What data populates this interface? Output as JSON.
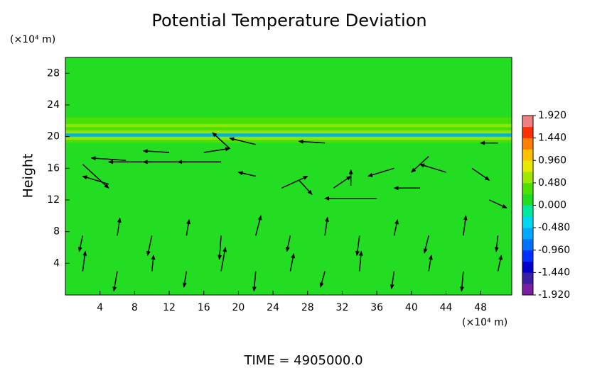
{
  "chart_data": {
    "type": "vector-field",
    "title": "Potential Temperature Deviation",
    "ylabel": "Height",
    "yunit": "(×10⁴ m)",
    "xunit": "(×10⁴ m)",
    "footer": "TIME = 4905000.0",
    "xlim": [
      0,
      51.6
    ],
    "ylim": [
      0,
      30
    ],
    "xticks": [
      4,
      8,
      12,
      16,
      20,
      24,
      28,
      32,
      36,
      40,
      44,
      48
    ],
    "yticks": [
      4,
      8,
      12,
      16,
      20,
      24,
      28
    ],
    "background": 0.1,
    "field": {
      "y": [
        19.4,
        19.8,
        20.2,
        20.6,
        21.0,
        21.4,
        21.8,
        22.2
      ],
      "values": [
        0.3,
        0.6,
        -0.5,
        0.6,
        0.3,
        0.5,
        0.3,
        0.25
      ]
    },
    "colorbar": {
      "lim": [
        -1.92,
        1.92
      ],
      "colors": [
        "#7a1fa0",
        "#3a1fa0",
        "#0000c8",
        "#0030ff",
        "#0070ff",
        "#00a8ff",
        "#00d8f0",
        "#00e8a0",
        "#22dd22",
        "#50e000",
        "#a0e800",
        "#e8e800",
        "#ffc000",
        "#ff8000",
        "#ff3000",
        "#f08080"
      ],
      "ticks": [
        {
          "value": 1.92,
          "label": "1.920"
        },
        {
          "value": 1.44,
          "label": "1.440"
        },
        {
          "value": 0.96,
          "label": "0.960"
        },
        {
          "value": 0.48,
          "label": "0.480"
        },
        {
          "value": 0,
          "label": "0.000"
        },
        {
          "value": -0.48,
          "label": "-0.480"
        },
        {
          "value": -0.96,
          "label": "-0.960"
        },
        {
          "value": -1.44,
          "label": "-1.440"
        },
        {
          "value": -1.92,
          "label": "-1.920"
        }
      ]
    },
    "vectors": {
      "x": [
        2,
        5,
        7,
        10,
        12,
        14,
        16,
        18,
        19,
        22,
        22,
        25,
        27,
        30,
        31,
        33,
        36,
        38,
        41,
        42,
        44,
        47,
        49,
        50,
        2,
        6,
        10,
        14,
        18,
        22,
        26,
        30,
        34,
        38,
        42,
        46,
        50,
        2,
        6,
        10,
        14,
        18,
        22,
        26,
        30,
        34,
        38,
        42,
        46,
        50
      ],
      "y": [
        16.5,
        14,
        17,
        16.8,
        18,
        16.8,
        18,
        16.8,
        18.5,
        19,
        15,
        13.5,
        14.5,
        19.2,
        13.5,
        13.8,
        12.2,
        16,
        13.5,
        17.5,
        15.5,
        16,
        12,
        19.2,
        3,
        3,
        3,
        3,
        3,
        3,
        3,
        3,
        3,
        3,
        3,
        3,
        3,
        7.5,
        7.5,
        7.5,
        7.5,
        7.5,
        7.5,
        7.5,
        7.5,
        7.5,
        7.5,
        7.5,
        7.5,
        7.5
      ],
      "u": [
        3,
        -3,
        -4,
        -5,
        -3,
        -5,
        3,
        -5,
        -2,
        -3,
        -2,
        3,
        1.5,
        -3,
        2,
        0,
        -6,
        -3,
        -3,
        -2,
        -3,
        2,
        2,
        -2,
        0.3,
        -0.4,
        0.2,
        -0.3,
        0.5,
        -0.2,
        0.4,
        -0.5,
        0.2,
        -0.3,
        0.3,
        -0.2,
        0.4,
        -0.4,
        0.3,
        -0.5,
        0.3,
        -0.2,
        0.6,
        -0.4,
        0.3,
        -0.3,
        0.4,
        -0.5,
        0.3,
        -0.2
      ],
      "v": [
        -3,
        1,
        0.3,
        0,
        0.2,
        0,
        0.5,
        0,
        2,
        0.8,
        0.5,
        1.5,
        -1.8,
        0.2,
        1.5,
        2,
        0,
        -1,
        0,
        -2,
        1,
        -1.5,
        -1,
        0,
        2.5,
        -2.5,
        2,
        -2,
        3,
        -2.5,
        2.2,
        -2,
        2.5,
        -2.2,
        2,
        -2.5,
        2,
        -2,
        2.2,
        -2.5,
        2,
        -3,
        2.5,
        -2,
        2.3,
        -2.5,
        2,
        -2.2,
        2.5,
        -2
      ]
    }
  }
}
